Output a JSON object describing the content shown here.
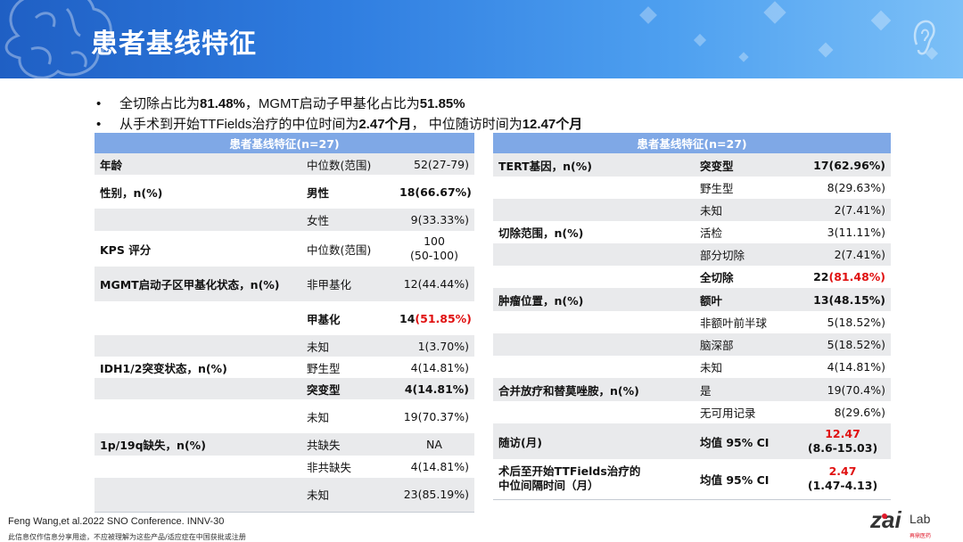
{
  "title": "患者基线特征",
  "bullets": [
    [
      "全切除占比为",
      "81.48%",
      "，MGMT启动子甲基化占比为",
      "51.85%"
    ],
    [
      "从手术到开始TTFields治疗的中位时间为",
      "2.47个月",
      "， 中位随访时间为",
      "12.47个月"
    ]
  ],
  "left_table": {
    "header": "患者基线特征(n=27)",
    "rows": [
      {
        "cat": "年龄",
        "sub": "中位数(范围)",
        "val": "52(27-79)"
      },
      {
        "cat": "性别，n(%)",
        "sub": "男性",
        "val": "18(66.67%)",
        "bold": true
      },
      {
        "cat": "",
        "sub": "女性",
        "val": "9(33.33%)"
      },
      {
        "cat": "KPS 评分",
        "sub": "中位数(范围)",
        "val_line1": "100",
        "val_line2": "(50-100)"
      },
      {
        "cat": "MGMT启动子区甲基化状态，n(%)",
        "sub": "非甲基化",
        "val": "12(44.44%)"
      },
      {
        "cat": "",
        "sub": "甲基化",
        "val_pre": "14",
        "val_red": "(51.85%)",
        "bold": true
      },
      {
        "cat": "",
        "sub": "未知",
        "val": "1(3.70%)"
      },
      {
        "cat": "IDH1/2突变状态，n(%)",
        "sub": "野生型",
        "val": "4(14.81%)"
      },
      {
        "cat": "",
        "sub": "突变型",
        "val": "4(14.81%)",
        "bold": true
      },
      {
        "cat": "",
        "sub": "未知",
        "val": "19(70.37%)"
      },
      {
        "cat": "1p/19q缺失，n(%)",
        "sub": "共缺失",
        "val": "NA"
      },
      {
        "cat": "",
        "sub": "非共缺失",
        "val": "4(14.81%)"
      },
      {
        "cat": "",
        "sub": "未知",
        "val": "23(85.19%)"
      }
    ]
  },
  "right_table": {
    "header": "患者基线特征(n=27)",
    "rows": [
      {
        "cat": "TERT基因，n(%)",
        "sub": "突变型",
        "val": "17(62.96%)",
        "bold": true
      },
      {
        "cat": "",
        "sub": "野生型",
        "val": "8(29.63%)"
      },
      {
        "cat": "",
        "sub": "未知",
        "val": "2(7.41%)"
      },
      {
        "cat": "切除范围，n(%)",
        "sub": "活检",
        "val": "3(11.11%)"
      },
      {
        "cat": "",
        "sub": "部分切除",
        "val": "2(7.41%)"
      },
      {
        "cat": "",
        "sub": "全切除",
        "val_pre": "22",
        "val_red": "(81.48%)",
        "bold": true
      },
      {
        "cat": "肿瘤位置，n(%)",
        "sub": "额叶",
        "val": "13(48.15%)",
        "bold": true
      },
      {
        "cat": "",
        "sub": "非额叶前半球",
        "val": "5(18.52%)"
      },
      {
        "cat": "",
        "sub": "脑深部",
        "val": "5(18.52%)"
      },
      {
        "cat": "",
        "sub": "未知",
        "val": "4(14.81%)"
      },
      {
        "cat": "合并放疗和替莫唑胺，n(%)",
        "sub": "是",
        "val": "19(70.4%)"
      },
      {
        "cat": "",
        "sub": "无可用记录",
        "val": "8(29.6%)"
      },
      {
        "cat": "随访(月)",
        "sub": "均值  95% CI",
        "val_red_line1": "12.47",
        "val_line2": "(8.6-15.03)",
        "bold": true
      },
      {
        "cat_line1": "术后至开始TTFields治疗的",
        "cat_line2": "中位间隔时间（月）",
        "sub": "均值  95% CI",
        "val_red_line1": "2.47",
        "val_line2": "(1.47-4.13)",
        "bold": true
      }
    ]
  },
  "citation": "Feng Wang,et al.2022 SNO Conference. INNV-30",
  "disclaimer": "此信息仅作信息分享用途，不应被理解为这些产品/适应症在中国获批或注册",
  "logo": {
    "main": "zai",
    "suffix": "Lab",
    "sub": "再鼎医药"
  },
  "colors": {
    "banner": "#2f7de0",
    "table_header": "#7fa8e6",
    "highlight": "#e01010",
    "stripe": "#e9eaec"
  }
}
